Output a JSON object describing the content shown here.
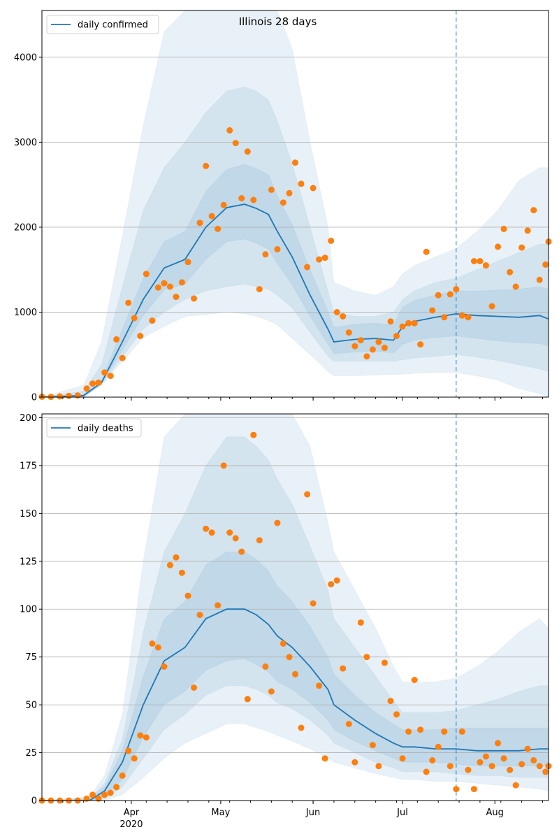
{
  "chart_data": [
    {
      "type": "line",
      "title": "Illinois 28 days",
      "legend": {
        "entries": [
          "daily confirmed"
        ],
        "placement": "upper-left"
      },
      "xlim": [
        "2020-03-02",
        "2020-08-19"
      ],
      "ylim": [
        0,
        4550
      ],
      "yticks": [
        0,
        1000,
        2000,
        3000,
        4000
      ],
      "grid": "horizontal",
      "forecast_start": "2020-07-19",
      "median": {
        "x": [
          "2020-03-02",
          "2020-03-16",
          "2020-03-22",
          "2020-03-29",
          "2020-04-05",
          "2020-04-12",
          "2020-04-19",
          "2020-04-26",
          "2020-05-03",
          "2020-05-09",
          "2020-05-13",
          "2020-05-17",
          "2020-05-20",
          "2020-05-25",
          "2020-05-31",
          "2020-06-06",
          "2020-06-08",
          "2020-06-15",
          "2020-06-22",
          "2020-06-28",
          "2020-07-01",
          "2020-07-05",
          "2020-07-12",
          "2020-07-19",
          "2020-07-26",
          "2020-08-02",
          "2020-08-09",
          "2020-08-16",
          "2020-08-19"
        ],
        "y": [
          0,
          20,
          170,
          650,
          1150,
          1520,
          1620,
          2000,
          2230,
          2270,
          2220,
          2150,
          1950,
          1650,
          1200,
          800,
          650,
          680,
          690,
          670,
          830,
          890,
          940,
          980,
          960,
          950,
          940,
          960,
          920
        ]
      },
      "bands": [
        {
          "lo": [
            0,
            0,
            140,
            420,
            700,
            830,
            950,
            970,
            1000,
            980,
            950,
            900,
            850,
            690,
            500,
            300,
            250,
            250,
            260,
            265,
            270,
            280,
            290,
            290,
            250,
            200,
            100,
            40,
            0
          ],
          "hi": [
            0,
            140,
            650,
            1900,
            3200,
            4300,
            4550,
            4550,
            4550,
            4550,
            4550,
            4550,
            4550,
            4100,
            3000,
            2000,
            1350,
            1250,
            1200,
            1300,
            1450,
            1550,
            1650,
            1750,
            1950,
            2200,
            2550,
            2700,
            2700
          ]
        },
        {
          "lo": [
            0,
            0,
            150,
            470,
            800,
            1000,
            1150,
            1250,
            1300,
            1330,
            1300,
            1270,
            1200,
            1050,
            760,
            480,
            420,
            420,
            420,
            420,
            440,
            460,
            480,
            500,
            470,
            430,
            380,
            330,
            300
          ],
          "hi": [
            0,
            70,
            380,
            1300,
            2200,
            2700,
            3000,
            3350,
            3600,
            3650,
            3600,
            3500,
            3250,
            2750,
            2000,
            1250,
            1000,
            950,
            950,
            1000,
            1150,
            1250,
            1350,
            1400,
            1500,
            1600,
            1700,
            1800,
            1800
          ]
        },
        {
          "lo": [
            0,
            0,
            160,
            550,
            960,
            1260,
            1330,
            1620,
            1830,
            1860,
            1810,
            1740,
            1570,
            1320,
            950,
            620,
            510,
            530,
            540,
            520,
            620,
            670,
            700,
            720,
            690,
            660,
            640,
            630,
            600
          ],
          "hi": [
            0,
            30,
            200,
            800,
            1400,
            1830,
            1950,
            2420,
            2680,
            2740,
            2690,
            2620,
            2370,
            2030,
            1500,
            1010,
            820,
            860,
            870,
            850,
            1060,
            1140,
            1200,
            1250,
            1250,
            1260,
            1270,
            1300,
            1270
          ]
        }
      ],
      "observed": {
        "x": [
          "2020-03-02",
          "2020-03-05",
          "2020-03-08",
          "2020-03-11",
          "2020-03-14",
          "2020-03-17",
          "2020-03-19",
          "2020-03-21",
          "2020-03-23",
          "2020-03-25",
          "2020-03-27",
          "2020-03-29",
          "2020-03-31",
          "2020-04-02",
          "2020-04-04",
          "2020-04-06",
          "2020-04-08",
          "2020-04-10",
          "2020-04-12",
          "2020-04-14",
          "2020-04-16",
          "2020-04-18",
          "2020-04-20",
          "2020-04-22",
          "2020-04-24",
          "2020-04-26",
          "2020-04-28",
          "2020-04-30",
          "2020-05-02",
          "2020-05-04",
          "2020-05-06",
          "2020-05-08",
          "2020-05-10",
          "2020-05-12",
          "2020-05-14",
          "2020-05-16",
          "2020-05-18",
          "2020-05-20",
          "2020-05-22",
          "2020-05-24",
          "2020-05-26",
          "2020-05-28",
          "2020-05-30",
          "2020-06-01",
          "2020-06-03",
          "2020-06-05",
          "2020-06-07",
          "2020-06-09",
          "2020-06-11",
          "2020-06-13",
          "2020-06-15",
          "2020-06-17",
          "2020-06-19",
          "2020-06-21",
          "2020-06-23",
          "2020-06-25",
          "2020-06-27",
          "2020-06-29",
          "2020-07-01",
          "2020-07-03",
          "2020-07-05",
          "2020-07-07",
          "2020-07-09",
          "2020-07-11",
          "2020-07-13",
          "2020-07-15",
          "2020-07-17",
          "2020-07-19",
          "2020-07-21",
          "2020-07-23",
          "2020-07-25",
          "2020-07-27",
          "2020-07-29",
          "2020-07-31",
          "2020-08-02",
          "2020-08-04",
          "2020-08-06",
          "2020-08-08",
          "2020-08-10",
          "2020-08-12",
          "2020-08-14",
          "2020-08-16",
          "2020-08-18",
          "2020-08-19"
        ],
        "y": [
          5,
          3,
          8,
          15,
          20,
          100,
          160,
          170,
          290,
          250,
          680,
          460,
          1110,
          930,
          720,
          1450,
          900,
          1290,
          1340,
          1300,
          1180,
          1350,
          1590,
          1160,
          2050,
          2720,
          2130,
          1980,
          2260,
          3140,
          2990,
          2340,
          2890,
          2320,
          1270,
          1680,
          2440,
          1740,
          2290,
          2400,
          2760,
          2510,
          1530,
          2460,
          1620,
          1640,
          1840,
          1000,
          950,
          760,
          600,
          670,
          480,
          560,
          650,
          580,
          890,
          720,
          830,
          870,
          870,
          620,
          1710,
          1020,
          1200,
          940,
          1210,
          1270,
          960,
          940,
          1600,
          1600,
          1550,
          1070,
          1770,
          1980,
          1470,
          1300,
          1760,
          1960,
          2200,
          1380,
          1560,
          1830
        ]
      }
    },
    {
      "type": "line",
      "title": "",
      "legend": {
        "entries": [
          "daily deaths"
        ],
        "placement": "upper-left"
      },
      "xlim": [
        "2020-03-02",
        "2020-08-19"
      ],
      "ylim": [
        0,
        202
      ],
      "yticks": [
        0,
        25,
        50,
        75,
        100,
        125,
        150,
        175,
        200
      ],
      "xticks": [
        "Apr",
        "May",
        "Jun",
        "Jul",
        "Aug"
      ],
      "xtick_year": "2020",
      "grid": "horizontal",
      "forecast_start": "2020-07-19",
      "median": {
        "x": [
          "2020-03-02",
          "2020-03-18",
          "2020-03-23",
          "2020-03-29",
          "2020-04-05",
          "2020-04-12",
          "2020-04-19",
          "2020-04-26",
          "2020-05-03",
          "2020-05-09",
          "2020-05-13",
          "2020-05-17",
          "2020-05-20",
          "2020-05-25",
          "2020-05-31",
          "2020-06-06",
          "2020-06-08",
          "2020-06-15",
          "2020-06-22",
          "2020-06-28",
          "2020-07-01",
          "2020-07-05",
          "2020-07-12",
          "2020-07-19",
          "2020-07-26",
          "2020-08-02",
          "2020-08-09",
          "2020-08-16",
          "2020-08-19"
        ],
        "y": [
          0,
          0,
          5,
          20,
          50,
          73,
          80,
          95,
          100,
          100,
          97,
          92,
          86,
          80,
          70,
          58,
          50,
          42,
          35,
          30,
          28,
          28,
          27,
          27,
          26,
          26,
          26,
          27,
          27
        ]
      },
      "bands": [
        {
          "lo": [
            0,
            0,
            0,
            3,
            12,
            22,
            30,
            35,
            40,
            40,
            38,
            36,
            34,
            31,
            27,
            22,
            20,
            17,
            14,
            12,
            11,
            11,
            10,
            10,
            9,
            8,
            7,
            6,
            5
          ],
          "hi": [
            0,
            2,
            13,
            45,
            125,
            190,
            202,
            202,
            202,
            202,
            202,
            202,
            202,
            202,
            185,
            145,
            130,
            110,
            90,
            70,
            62,
            62,
            62,
            64,
            70,
            78,
            88,
            95,
            90
          ]
        },
        {
          "lo": [
            0,
            0,
            1,
            7,
            22,
            37,
            45,
            55,
            60,
            60,
            58,
            55,
            51,
            48,
            42,
            34,
            30,
            25,
            20,
            17,
            15,
            15,
            15,
            14,
            13,
            13,
            12,
            12,
            12
          ],
          "hi": [
            0,
            1,
            9,
            32,
            88,
            130,
            150,
            175,
            190,
            190,
            185,
            178,
            168,
            155,
            133,
            110,
            95,
            80,
            65,
            52,
            46,
            46,
            46,
            47,
            50,
            53,
            57,
            60,
            60
          ]
        },
        {
          "lo": [
            0,
            0,
            2,
            11,
            33,
            50,
            57,
            68,
            73,
            74,
            71,
            67,
            62,
            58,
            51,
            42,
            37,
            31,
            26,
            22,
            20,
            20,
            20,
            19,
            18,
            18,
            18,
            18,
            18
          ],
          "hi": [
            0,
            1,
            7,
            26,
            65,
            95,
            104,
            123,
            130,
            130,
            126,
            120,
            112,
            104,
            91,
            75,
            66,
            55,
            46,
            40,
            37,
            37,
            37,
            38,
            38,
            38,
            38,
            38,
            38
          ]
        }
      ],
      "observed": {
        "x": [
          "2020-03-02",
          "2020-03-05",
          "2020-03-08",
          "2020-03-11",
          "2020-03-14",
          "2020-03-17",
          "2020-03-19",
          "2020-03-21",
          "2020-03-23",
          "2020-03-25",
          "2020-03-27",
          "2020-03-29",
          "2020-03-31",
          "2020-04-02",
          "2020-04-04",
          "2020-04-06",
          "2020-04-08",
          "2020-04-10",
          "2020-04-12",
          "2020-04-14",
          "2020-04-16",
          "2020-04-18",
          "2020-04-20",
          "2020-04-22",
          "2020-04-24",
          "2020-04-26",
          "2020-04-28",
          "2020-04-30",
          "2020-05-02",
          "2020-05-04",
          "2020-05-06",
          "2020-05-08",
          "2020-05-10",
          "2020-05-12",
          "2020-05-14",
          "2020-05-16",
          "2020-05-18",
          "2020-05-20",
          "2020-05-22",
          "2020-05-24",
          "2020-05-26",
          "2020-05-28",
          "2020-05-30",
          "2020-06-01",
          "2020-06-03",
          "2020-06-05",
          "2020-06-07",
          "2020-06-09",
          "2020-06-11",
          "2020-06-13",
          "2020-06-15",
          "2020-06-17",
          "2020-06-19",
          "2020-06-21",
          "2020-06-23",
          "2020-06-25",
          "2020-06-27",
          "2020-06-29",
          "2020-07-01",
          "2020-07-03",
          "2020-07-05",
          "2020-07-07",
          "2020-07-09",
          "2020-07-11",
          "2020-07-13",
          "2020-07-15",
          "2020-07-17",
          "2020-07-19",
          "2020-07-21",
          "2020-07-23",
          "2020-07-25",
          "2020-07-27",
          "2020-07-29",
          "2020-07-31",
          "2020-08-02",
          "2020-08-04",
          "2020-08-06",
          "2020-08-08",
          "2020-08-10",
          "2020-08-12",
          "2020-08-14",
          "2020-08-16",
          "2020-08-18",
          "2020-08-19"
        ],
        "y": [
          0,
          0,
          0,
          0,
          0,
          1,
          3,
          1,
          3,
          4,
          7,
          13,
          26,
          22,
          34,
          33,
          82,
          80,
          70,
          123,
          127,
          119,
          107,
          59,
          97,
          142,
          140,
          102,
          175,
          140,
          137,
          130,
          53,
          191,
          136,
          70,
          57,
          145,
          82,
          75,
          66,
          38,
          160,
          103,
          60,
          22,
          113,
          115,
          69,
          40,
          20,
          93,
          75,
          29,
          18,
          72,
          52,
          45,
          22,
          36,
          63,
          37,
          15,
          21,
          28,
          36,
          18,
          6,
          36,
          16,
          6,
          20,
          23,
          18,
          30,
          22,
          16,
          8,
          19,
          27,
          21,
          18,
          15,
          18
        ]
      }
    }
  ]
}
